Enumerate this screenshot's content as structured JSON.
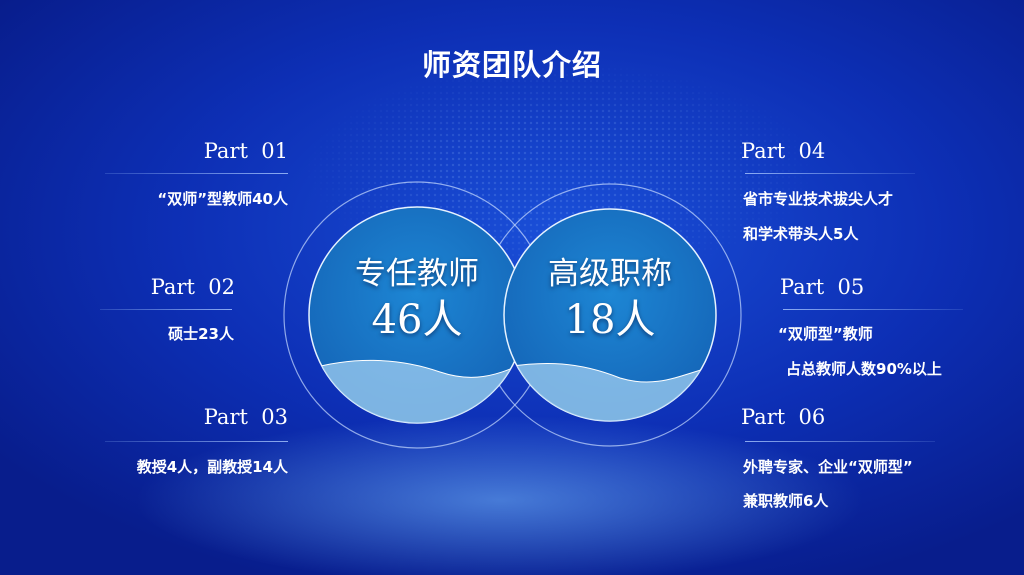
{
  "title": "师资团队介绍",
  "circles": [
    {
      "label": "专任教师",
      "value": "46人"
    },
    {
      "label": "高级职称",
      "value": "18人"
    }
  ],
  "parts": [
    {
      "label": "Part  01",
      "lines": [
        "“双师”型教师40人"
      ]
    },
    {
      "label": "Part  02",
      "lines": [
        "硕士23人"
      ]
    },
    {
      "label": "Part  03",
      "lines": [
        "教授4人，副教授14人"
      ]
    },
    {
      "label": "Part  04",
      "lines": [
        "省市专业技术拔尖人才",
        "和学术带头人5人"
      ]
    },
    {
      "label": "Part  05",
      "lines": [
        "“双师型”教师",
        "占总教师人数90%以上"
      ]
    },
    {
      "label": "Part  06",
      "lines": [
        "外聘专家、企业“双师型”",
        "兼职教师6人"
      ]
    }
  ],
  "colors": {
    "background": "#0d2fb5",
    "circle": "#1a78c8",
    "wave": "#8fc3ea"
  }
}
